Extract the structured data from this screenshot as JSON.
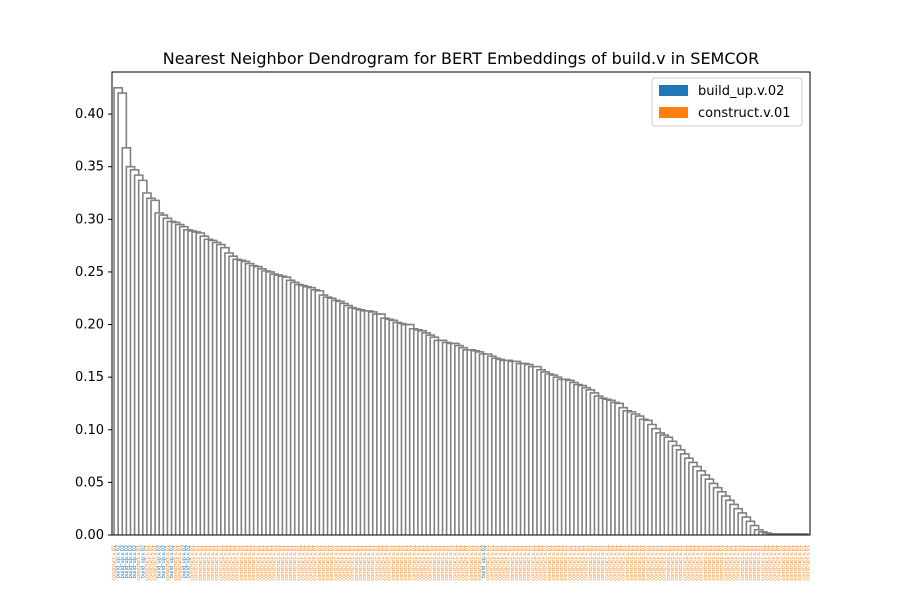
{
  "chart_data": {
    "type": "dendrogram",
    "title": "Nearest Neighbor Dendrogram for BERT Embeddings of build.v in SEMCOR",
    "xlabel": "",
    "ylabel": "",
    "ylim": [
      0,
      0.44
    ],
    "yticks": [
      "0.00",
      "0.05",
      "0.10",
      "0.15",
      "0.20",
      "0.25",
      "0.30",
      "0.35",
      "0.40"
    ],
    "link_color": "#808080",
    "legend": {
      "placement": "top-right",
      "entries": [
        {
          "label": "build_up.v.02",
          "color": "#1f77b4"
        },
        {
          "label": "construct.v.01",
          "color": "#ff7f0e"
        }
      ]
    },
    "leaf_classes": [
      "construct.v.01",
      "build_up.v.02",
      "build_up.v.02",
      "build_up.v.02",
      "build_up.v.02",
      "build_up.v.02",
      "construct.v.01",
      "build_up.v.02",
      "construct.v.01",
      "construct.v.01",
      "construct.v.01",
      "build_up.v.02",
      "build_up.v.02",
      "construct.v.01",
      "build_up.v.02",
      "construct.v.01",
      "construct.v.01",
      "build_up.v.02",
      "build_up.v.02",
      "construct.v.01",
      "construct.v.01",
      "construct.v.01",
      "construct.v.01",
      "construct.v.01",
      "construct.v.01",
      "construct.v.01",
      "construct.v.01",
      "construct.v.01",
      "construct.v.01",
      "construct.v.01",
      "construct.v.01",
      "construct.v.01",
      "construct.v.01",
      "construct.v.01",
      "construct.v.01",
      "construct.v.01",
      "construct.v.01",
      "construct.v.01",
      "construct.v.01",
      "construct.v.01",
      "construct.v.01",
      "construct.v.01",
      "construct.v.01",
      "construct.v.01",
      "construct.v.01",
      "construct.v.01",
      "construct.v.01",
      "construct.v.01",
      "construct.v.01",
      "construct.v.01",
      "construct.v.01",
      "construct.v.01",
      "construct.v.01",
      "construct.v.01",
      "construct.v.01",
      "construct.v.01",
      "construct.v.01",
      "construct.v.01",
      "construct.v.01",
      "construct.v.01",
      "construct.v.01",
      "construct.v.01",
      "construct.v.01",
      "construct.v.01",
      "construct.v.01",
      "construct.v.01",
      "construct.v.01",
      "construct.v.01",
      "construct.v.01",
      "construct.v.01",
      "construct.v.01",
      "construct.v.01",
      "construct.v.01",
      "construct.v.01",
      "construct.v.01",
      "construct.v.01",
      "construct.v.01",
      "construct.v.01",
      "construct.v.01",
      "construct.v.01",
      "construct.v.01",
      "construct.v.01",
      "construct.v.01",
      "construct.v.01",
      "construct.v.01",
      "construct.v.01",
      "construct.v.01",
      "construct.v.01",
      "construct.v.01",
      "construct.v.01",
      "build_up.v.02",
      "construct.v.01",
      "construct.v.01",
      "construct.v.01",
      "construct.v.01",
      "construct.v.01",
      "construct.v.01",
      "construct.v.01",
      "construct.v.01",
      "construct.v.01",
      "construct.v.01",
      "construct.v.01",
      "construct.v.01",
      "construct.v.01",
      "construct.v.01",
      "construct.v.01",
      "construct.v.01",
      "construct.v.01",
      "construct.v.01",
      "construct.v.01",
      "construct.v.01",
      "construct.v.01",
      "construct.v.01",
      "construct.v.01",
      "construct.v.01",
      "construct.v.01",
      "construct.v.01",
      "construct.v.01",
      "construct.v.01",
      "construct.v.01",
      "construct.v.01",
      "construct.v.01",
      "construct.v.01",
      "construct.v.01",
      "construct.v.01",
      "construct.v.01",
      "construct.v.01",
      "construct.v.01",
      "construct.v.01",
      "construct.v.01",
      "construct.v.01",
      "construct.v.01",
      "construct.v.01",
      "construct.v.01",
      "construct.v.01",
      "construct.v.01",
      "construct.v.01",
      "construct.v.01",
      "construct.v.01",
      "construct.v.01",
      "construct.v.01",
      "construct.v.01",
      "construct.v.01",
      "construct.v.01",
      "construct.v.01",
      "construct.v.01",
      "construct.v.01",
      "construct.v.01",
      "construct.v.01",
      "construct.v.01",
      "construct.v.01",
      "construct.v.01",
      "construct.v.01",
      "construct.v.01",
      "construct.v.01",
      "construct.v.01",
      "construct.v.01",
      "construct.v.01",
      "construct.v.01",
      "construct.v.01",
      "construct.v.01",
      "construct.v.01",
      "construct.v.01",
      "construct.v.01",
      "construct.v.01",
      "construct.v.01",
      "construct.v.01",
      "construct.v.01",
      "construct.v.01",
      "construct.v.01"
    ],
    "merge_heights": [
      0.425,
      0.42,
      0.368,
      0.35,
      0.347,
      0.342,
      0.337,
      0.325,
      0.32,
      0.318,
      0.306,
      0.304,
      0.301,
      0.298,
      0.297,
      0.295,
      0.293,
      0.29,
      0.289,
      0.288,
      0.287,
      0.284,
      0.281,
      0.28,
      0.278,
      0.276,
      0.273,
      0.268,
      0.265,
      0.262,
      0.261,
      0.26,
      0.258,
      0.256,
      0.251,
      0.25,
      0.248,
      0.247,
      0.246,
      0.245,
      0.242,
      0.24,
      0.238,
      0.237,
      0.236,
      0.235,
      0.232,
      0.228,
      0.226,
      0.225,
      0.223,
      0.222,
      0.22,
      0.218,
      0.216,
      0.214,
      0.212,
      0.21,
      0.206,
      0.205,
      0.204,
      0.202,
      0.201,
      0.2,
      0.196,
      0.195,
      0.194,
      0.192,
      0.19,
      0.185,
      0.182,
      0.18,
      0.178,
      0.176,
      0.175,
      0.174,
      0.172,
      0.17,
      0.168,
      0.166,
      0.165,
      0.163,
      0.162,
      0.16,
      0.157,
      0.155,
      0.153,
      0.15,
      0.148,
      0.145,
      0.142,
      0.14,
      0.135,
      0.13,
      0.128,
      0.126,
      0.118,
      0.115,
      0.11,
      0.095,
      0.255,
      0.213,
      0.165,
      0.148,
      0.233,
      0.213,
      0.183,
      0.152,
      0.253,
      0.215,
      0.21,
      0.166,
      0.2,
      0.185,
      0.188,
      0.182,
      0.176,
      0.172,
      0.167,
      0.163,
      0.16,
      0.147,
      0.143,
      0.138,
      0.132,
      0.129,
      0.125,
      0.121,
      0.117,
      0.113,
      0.109,
      0.105,
      0.101,
      0.097,
      0.093,
      0.089,
      0.085,
      0.081,
      0.077,
      0.073,
      0.069,
      0.065,
      0.061,
      0.057,
      0.053,
      0.049,
      0.045,
      0.041,
      0.037,
      0.033,
      0.029,
      0.025,
      0.021,
      0.017,
      0.013,
      0.009,
      0.005,
      0.003,
      0.002,
      0.001,
      0.001,
      0.001,
      0.001,
      0.001,
      0.001,
      0.001,
      0.001,
      0.001,
      0.001
    ]
  }
}
